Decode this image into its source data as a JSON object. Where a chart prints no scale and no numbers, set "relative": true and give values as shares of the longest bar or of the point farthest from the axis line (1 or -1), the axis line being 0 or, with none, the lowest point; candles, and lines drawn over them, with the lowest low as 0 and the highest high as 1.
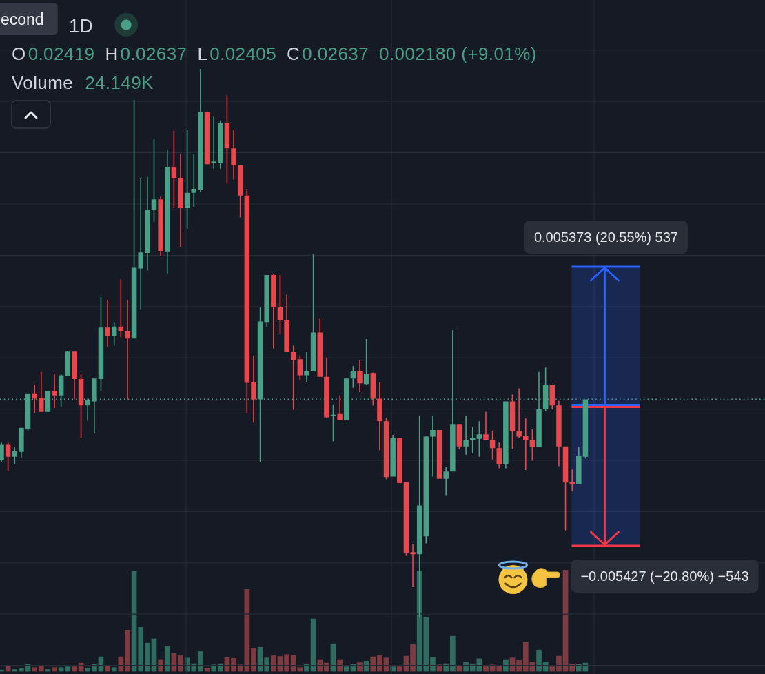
{
  "chart_data": [
    {
      "type": "candlestick",
      "title": "1D",
      "relative": true,
      "grid": true,
      "annotations": [
        "econd",
        "O",
        "0.02419",
        "H",
        "0.02637",
        "L",
        "0.02405",
        "C",
        "0.02637",
        "0.002180 (+9.01%)",
        "Volume",
        "24.149K",
        "0.005373 (20.55%) 537",
        "−0.005427 (−20.80%) −543"
      ],
      "categories": [
        null,
        null,
        null,
        null,
        null,
        null,
        null,
        null,
        null,
        null,
        null,
        null,
        null,
        null,
        null,
        null,
        null,
        null,
        null,
        null,
        null,
        null,
        null,
        null,
        null,
        null,
        null,
        null,
        null,
        null,
        null,
        null,
        null,
        null,
        null,
        null,
        null,
        null,
        null,
        null,
        null,
        null,
        null,
        null,
        null,
        null,
        null,
        null,
        null,
        null,
        null,
        null,
        null,
        null,
        null,
        null,
        null,
        null,
        null,
        null,
        null,
        null,
        null,
        null,
        null,
        null,
        null,
        null,
        null,
        null,
        null,
        null,
        null,
        null,
        null,
        null,
        null,
        null,
        null,
        null,
        null,
        null,
        null,
        null,
        null,
        null,
        null,
        null,
        null
      ],
      "ohlc": [
        [
          0.286,
          0.318,
          0.283,
          0.315
        ],
        [
          0.315,
          0.318,
          0.266,
          0.292
        ],
        [
          0.292,
          0.309,
          0.278,
          0.302
        ],
        [
          0.301,
          0.345,
          0.291,
          0.345
        ],
        [
          0.343,
          0.408,
          0.34,
          0.408
        ],
        [
          0.408,
          0.424,
          0.371,
          0.398
        ],
        [
          0.4,
          0.447,
          0.374,
          0.374
        ],
        [
          0.374,
          0.412,
          0.374,
          0.412
        ],
        [
          0.412,
          0.444,
          0.381,
          0.404
        ],
        [
          0.404,
          0.444,
          0.383,
          0.441
        ],
        [
          0.44,
          0.485,
          0.439,
          0.484
        ],
        [
          0.484,
          0.484,
          0.397,
          0.434
        ],
        [
          0.434,
          0.444,
          0.326,
          0.386
        ],
        [
          0.386,
          0.398,
          0.358,
          0.395
        ],
        [
          0.393,
          0.435,
          0.336,
          0.435
        ],
        [
          0.434,
          0.584,
          0.413,
          0.528
        ],
        [
          0.528,
          0.579,
          0.492,
          0.512
        ],
        [
          0.512,
          0.538,
          0.495,
          0.53
        ],
        [
          0.53,
          0.616,
          0.51,
          0.521
        ],
        [
          0.521,
          0.579,
          0.397,
          0.508
        ],
        [
          0.508,
          0.944,
          0.508,
          0.637
        ],
        [
          0.636,
          0.8,
          0.56,
          0.665
        ],
        [
          0.664,
          0.803,
          0.632,
          0.743
        ],
        [
          0.742,
          0.872,
          0.721,
          0.762
        ],
        [
          0.762,
          0.767,
          0.658,
          0.668
        ],
        [
          0.667,
          0.853,
          0.626,
          0.82
        ],
        [
          0.82,
          0.887,
          0.746,
          0.801
        ],
        [
          0.801,
          0.844,
          0.675,
          0.746
        ],
        [
          0.746,
          0.888,
          0.708,
          0.774
        ],
        [
          0.774,
          0.845,
          0.748,
          0.781
        ],
        [
          0.78,
          1,
          0.775,
          0.921
        ],
        [
          0.921,
          0.921,
          0.826,
          0.826
        ],
        [
          0.828,
          0.913,
          0.818,
          0.831
        ],
        [
          0.828,
          0.906,
          0.818,
          0.901
        ],
        [
          0.901,
          0.952,
          0.791,
          0.855
        ],
        [
          0.855,
          0.889,
          0.798,
          0.824
        ],
        [
          0.825,
          0.825,
          0.729,
          0.769
        ],
        [
          0.769,
          0.781,
          0.371,
          0.427
        ],
        [
          0.428,
          0.477,
          0.354,
          0.397
        ],
        [
          0.397,
          0.565,
          0.282,
          0.539
        ],
        [
          0.538,
          0.624,
          0.529,
          0.624
        ],
        [
          0.624,
          0.626,
          0.49,
          0.566
        ],
        [
          0.566,
          0.624,
          0.517,
          0.541
        ],
        [
          0.541,
          0.588,
          0.483,
          0.483
        ],
        [
          0.483,
          0.495,
          0.378,
          0.469
        ],
        [
          0.47,
          0.477,
          0.433,
          0.441
        ],
        [
          0.441,
          0.483,
          0.429,
          0.448
        ],
        [
          0.448,
          0.662,
          0.448,
          0.519
        ],
        [
          0.519,
          0.544,
          0.438,
          0.438
        ],
        [
          0.438,
          0.473,
          0.363,
          0.364
        ],
        [
          0.366,
          0.387,
          0.32,
          0.369
        ],
        [
          0.37,
          0.404,
          0.359,
          0.359
        ],
        [
          0.359,
          0.435,
          0.359,
          0.435
        ],
        [
          0.435,
          0.458,
          0.418,
          0.449
        ],
        [
          0.449,
          0.468,
          0.41,
          0.426
        ],
        [
          0.425,
          0.507,
          0.423,
          0.444
        ],
        [
          0.445,
          0.446,
          0.386,
          0.398
        ],
        [
          0.398,
          0.428,
          0.304,
          0.357
        ],
        [
          0.357,
          0.363,
          0.251,
          0.255
        ],
        [
          0.256,
          0.332,
          0.256,
          0.326
        ],
        [
          0.326,
          0.326,
          0.244,
          0.244
        ],
        [
          0.246,
          0.246,
          0.111,
          0.117
        ],
        [
          0.118,
          0.132,
          0.054,
          0.114
        ],
        [
          0.114,
          0.367,
          0,
          0.203
        ],
        [
          0.147,
          0.33,
          0.134,
          0.329
        ],
        [
          0.329,
          0.367,
          0.256,
          0.341
        ],
        [
          0.341,
          0.341,
          0.252,
          0.252
        ],
        [
          0.252,
          0.273,
          0.222,
          0.265
        ],
        [
          0.265,
          0.523,
          0.265,
          0.352
        ],
        [
          0.352,
          0.352,
          0.306,
          0.311
        ],
        [
          0.311,
          0.367,
          0.296,
          0.322
        ],
        [
          0.322,
          0.346,
          0.298,
          0.326
        ],
        [
          0.325,
          0.357,
          0.292,
          0.333
        ],
        [
          0.333,
          0.374,
          0.323,
          0.323
        ],
        [
          0.323,
          0.34,
          0.287,
          0.308
        ],
        [
          0.308,
          0.318,
          0.271,
          0.278
        ],
        [
          0.278,
          0.393,
          0.271,
          0.393
        ],
        [
          0.393,
          0.406,
          0.307,
          0.339
        ],
        [
          0.339,
          0.417,
          0.327,
          0.329
        ],
        [
          0.33,
          0.362,
          0.268,
          0.323
        ],
        [
          0.323,
          0.342,
          0.285,
          0.31
        ],
        [
          0.31,
          0.447,
          0.31,
          0.379
        ],
        [
          0.379,
          0.455,
          0.375,
          0.424
        ],
        [
          0.424,
          0.424,
          0.379,
          0.386
        ],
        [
          0.386,
          0.394,
          0.275,
          0.311
        ],
        [
          0.311,
          0.311,
          0.158,
          0.245
        ],
        [
          0.246,
          0.269,
          0.23,
          0.242
        ],
        [
          0.242,
          0.31,
          0.242,
          0.294
        ],
        [
          0.292,
          0.397,
          0.289,
          0.397
        ]
      ],
      "colors": [
        "#4aa086",
        "#e5484d",
        "#4aa086",
        "#4aa086",
        "#4aa086",
        "#e5484d",
        "#e5484d",
        "#4aa086",
        "#e5484d",
        "#4aa086",
        "#4aa086",
        "#e5484d",
        "#e5484d",
        "#4aa086",
        "#4aa086",
        "#4aa086",
        "#e5484d",
        "#4aa086",
        "#e5484d",
        "#e5484d",
        "#4aa086",
        "#4aa086",
        "#4aa086",
        "#4aa086",
        "#e5484d",
        "#4aa086",
        "#e5484d",
        "#e5484d",
        "#4aa086",
        "#4aa086",
        "#4aa086",
        "#e5484d",
        "#4aa086",
        "#4aa086",
        "#e5484d",
        "#e5484d",
        "#e5484d",
        "#e5484d",
        "#e5484d",
        "#4aa086",
        "#4aa086",
        "#e5484d",
        "#e5484d",
        "#e5484d",
        "#e5484d",
        "#e5484d",
        "#4aa086",
        "#4aa086",
        "#e5484d",
        "#e5484d",
        "#4aa086",
        "#e5484d",
        "#4aa086",
        "#4aa086",
        "#e5484d",
        "#4aa086",
        "#e5484d",
        "#e5484d",
        "#e5484d",
        "#4aa086",
        "#e5484d",
        "#e5484d",
        "#e5484d",
        "#4aa086",
        "#4aa086",
        "#4aa086",
        "#e5484d",
        "#4aa086",
        "#4aa086",
        "#e5484d",
        "#4aa086",
        "#4aa086",
        "#4aa086",
        "#e5484d",
        "#e5484d",
        "#e5484d",
        "#4aa086",
        "#e5484d",
        "#e5484d",
        "#e5484d",
        "#e5484d",
        "#4aa086",
        "#4aa086",
        "#e5484d",
        "#e5484d",
        "#e5484d",
        "#e5484d",
        "#4aa086",
        "#4aa086"
      ],
      "ref_lines": [
        {
          "axis": "y",
          "value": 0.397,
          "color": "#4aa086",
          "line_style": "dotted"
        }
      ]
    },
    {
      "type": "bar",
      "relative": true,
      "categories": [
        null,
        null,
        null,
        null,
        null,
        null,
        null,
        null,
        null,
        null,
        null,
        null,
        null,
        null,
        null,
        null,
        null,
        null,
        null,
        null,
        null,
        null,
        null,
        null,
        null,
        null,
        null,
        null,
        null,
        null,
        null,
        null,
        null,
        null,
        null,
        null,
        null,
        null,
        null,
        null,
        null,
        null,
        null,
        null,
        null,
        null,
        null,
        null,
        null,
        null,
        null,
        null,
        null,
        null,
        null,
        null,
        null,
        null,
        null,
        null,
        null,
        null,
        null,
        null,
        null,
        null,
        null,
        null,
        null,
        null,
        null,
        null,
        null,
        null,
        null,
        null,
        null,
        null,
        null,
        null,
        null,
        null,
        null,
        null,
        null,
        null,
        null,
        null,
        null
      ],
      "values": [
        0.018,
        0.06,
        0.022,
        0.03,
        0.071,
        0.041,
        0.06,
        0.022,
        0.041,
        0.041,
        0.049,
        0.049,
        0.086,
        0.034,
        0.075,
        0.147,
        0.06,
        0.041,
        0.147,
        0.41,
        0.987,
        0.437,
        0.282,
        0.324,
        0.12,
        0.248,
        0.18,
        0.158,
        0.136,
        0.079,
        0.199,
        0.034,
        0.068,
        0.079,
        0.139,
        0.132,
        0.068,
        0.81,
        0.233,
        0.241,
        0.136,
        0.158,
        0.151,
        0.17,
        0.161,
        0.041,
        0.075,
        0.52,
        0.12,
        0.086,
        0.275,
        0.12,
        0.049,
        0.075,
        0.09,
        0.105,
        0.147,
        0.161,
        0.136,
        0.049,
        0.049,
        0.154,
        0.267,
        0.99,
        0.539,
        0.139,
        0.068,
        0.079,
        0.35,
        0.06,
        0.094,
        0.079,
        0.128,
        0.056,
        0.068,
        0.052,
        0.12,
        0.136,
        0.113,
        0.29,
        0.094,
        0.214,
        0.094,
        0.049,
        0.154,
        1,
        0.075,
        0.075,
        0.086
      ],
      "colors": [
        "#2f6b5f",
        "#7c3b40",
        "#2f6b5f",
        "#2f6b5f",
        "#2f6b5f",
        "#7c3b40",
        "#7c3b40",
        "#2f6b5f",
        "#7c3b40",
        "#2f6b5f",
        "#2f6b5f",
        "#7c3b40",
        "#7c3b40",
        "#2f6b5f",
        "#2f6b5f",
        "#2f6b5f",
        "#7c3b40",
        "#2f6b5f",
        "#7c3b40",
        "#7c3b40",
        "#2f6b5f",
        "#2f6b5f",
        "#2f6b5f",
        "#2f6b5f",
        "#7c3b40",
        "#2f6b5f",
        "#7c3b40",
        "#7c3b40",
        "#2f6b5f",
        "#2f6b5f",
        "#2f6b5f",
        "#7c3b40",
        "#2f6b5f",
        "#2f6b5f",
        "#7c3b40",
        "#7c3b40",
        "#7c3b40",
        "#7c3b40",
        "#7c3b40",
        "#2f6b5f",
        "#2f6b5f",
        "#7c3b40",
        "#7c3b40",
        "#7c3b40",
        "#7c3b40",
        "#7c3b40",
        "#2f6b5f",
        "#2f6b5f",
        "#7c3b40",
        "#7c3b40",
        "#2f6b5f",
        "#7c3b40",
        "#2f6b5f",
        "#2f6b5f",
        "#7c3b40",
        "#2f6b5f",
        "#7c3b40",
        "#7c3b40",
        "#7c3b40",
        "#2f6b5f",
        "#7c3b40",
        "#7c3b40",
        "#7c3b40",
        "#2f6b5f",
        "#2f6b5f",
        "#2f6b5f",
        "#7c3b40",
        "#2f6b5f",
        "#2f6b5f",
        "#7c3b40",
        "#2f6b5f",
        "#2f6b5f",
        "#2f6b5f",
        "#7c3b40",
        "#7c3b40",
        "#7c3b40",
        "#2f6b5f",
        "#7c3b40",
        "#7c3b40",
        "#7c3b40",
        "#7c3b40",
        "#2f6b5f",
        "#2f6b5f",
        "#7c3b40",
        "#7c3b40",
        "#7c3b40",
        "#7c3b40",
        "#2f6b5f",
        "#2f6b5f"
      ]
    }
  ]
}
